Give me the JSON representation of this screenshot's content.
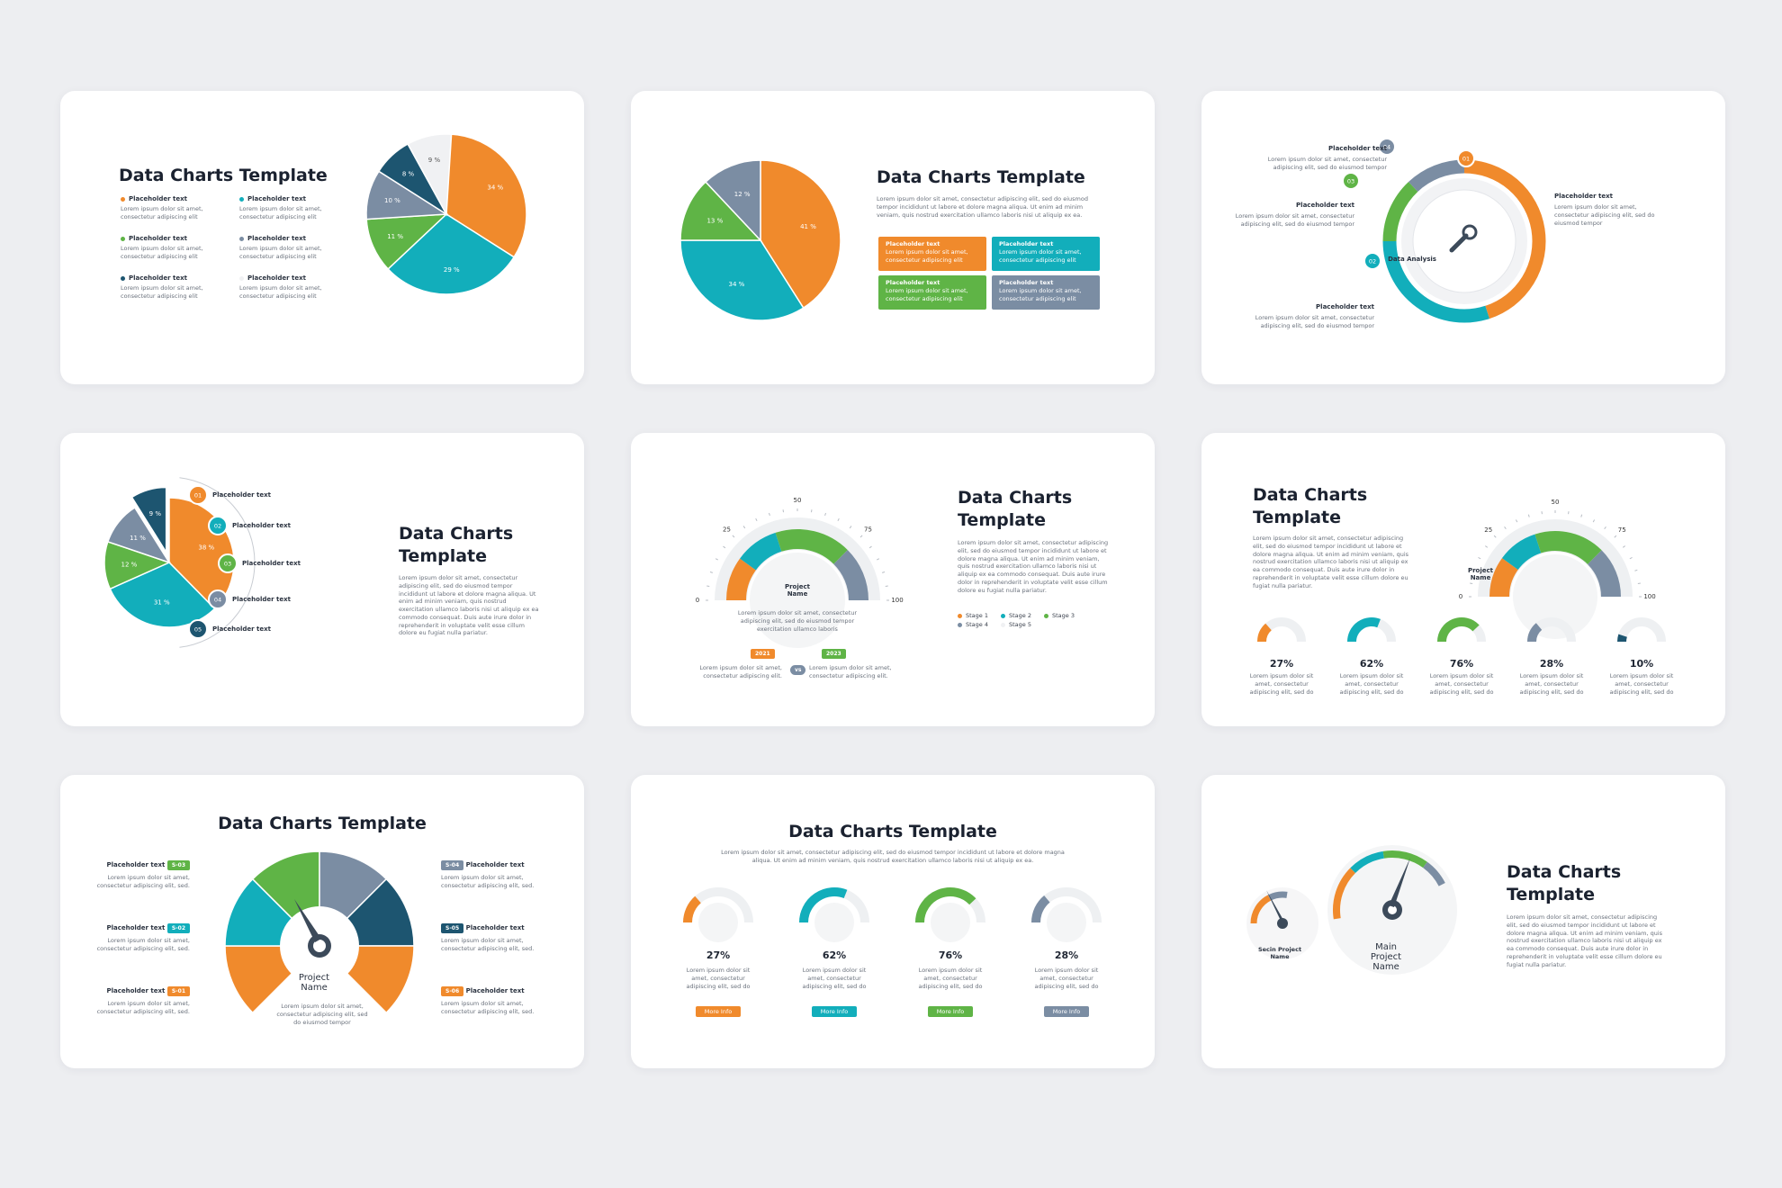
{
  "colors": {
    "orange": "#f08a2c",
    "teal": "#12aebb",
    "green": "#5fb446",
    "slate": "#7b8da3",
    "navy": "#1d5570",
    "light": "#f0f1f3"
  },
  "lorem_short": "Lorem ipsum dolor sit amet, consectetur adipiscing elit",
  "lorem_short2": "Lorem ipsum dolor sit amet, consectetur adipiscing elit.",
  "lorem_tempor": "Lorem ipsum dolor sit amet, consectetur adipiscing elit, sed do eiusmod tempor",
  "lorem_do": "Lorem ipsum dolor sit amet, consectetur adipiscing elit, sed do",
  "lorem_sed": "Lorem ipsum dolor sit amet, consectetur adipiscing elit, sed.",
  "lorem_block": "Lorem ipsum dolor sit amet, consectetur adipiscing elit, sed do eiusmod tempor incididunt ut labore et dolore magna aliqua. Ut enim ad minim veniam, quis nostrud exercitation ullamco laboris nisi ut aliquip ex ea commodo consequat. Duis aute irure dolor in reprehenderit in voluptate velit esse cillum dolore eu fugiat nulla pariatur.",
  "lorem_mid": "Lorem ipsum dolor sit amet, consectetur adipiscing elit, sed do eiusmod tempor incididunt ut labore et dolore magna aliqua. Ut enim ad minim veniam, quis nostrud exercitation ullamco laboris nisi ut aliquip ex ea.",
  "lorem_center": "Lorem ipsum dolor sit amet, consectetur adipiscing elit, sed do eiusmod tempor exercitation ullamco laboris",
  "placeholder": "Placeholder text",
  "chart_data": [
    {
      "type": "pie",
      "title": "Data Charts Template",
      "values": [
        34,
        29,
        11,
        10,
        8,
        9
      ],
      "labels": [
        "34 %",
        "29 %",
        "11 %",
        "10 %",
        "8 %",
        "9 %"
      ],
      "legend": [
        "Placeholder text",
        "Placeholder text",
        "Placeholder text",
        "Placeholder text",
        "Placeholder text",
        "Placeholder text"
      ]
    },
    {
      "type": "pie",
      "title": "Data Charts Template",
      "values": [
        41,
        34,
        13,
        12
      ],
      "labels": [
        "41 %",
        "34 %",
        "13 %",
        "12 %"
      ],
      "boxes": [
        "Placeholder text",
        "Placeholder text",
        "Placeholder text",
        "Placeholder text"
      ]
    },
    {
      "type": "pie",
      "title": "",
      "center_label": "Data Analysis",
      "values": [
        45,
        30,
        13,
        12
      ],
      "markers": [
        "01",
        "02",
        "03",
        "04"
      ],
      "labels": [
        "Placeholder text",
        "Placeholder text",
        "Placeholder text",
        "Placeholder text"
      ]
    },
    {
      "type": "pie",
      "title": "Data Charts Template",
      "values": [
        38,
        31,
        12,
        11,
        9
      ],
      "labels": [
        "38 %",
        "31 %",
        "12 %",
        "11 %",
        "9 %"
      ],
      "markers": [
        "01",
        "02",
        "03",
        "04",
        "05"
      ]
    },
    {
      "type": "gauge",
      "title": "Data Charts Template",
      "center_label": "Project Name",
      "ticks": [
        "0",
        "25",
        "50",
        "75",
        "100"
      ],
      "segments": [
        20,
        20,
        35,
        25
      ],
      "legend": [
        "Stage 1",
        "Stage 2",
        "Stage 3",
        "Stage 4",
        "Stage 5"
      ],
      "years": [
        "2021",
        "2023"
      ],
      "vs": "vs"
    },
    {
      "type": "gauge",
      "title": "Data Charts Template",
      "center_label": "Project Name",
      "ticks": [
        "0",
        "25",
        "50",
        "75",
        "100"
      ],
      "segments": [
        20,
        20,
        35,
        25
      ],
      "mini": [
        27,
        62,
        76,
        28,
        10
      ],
      "mini_labels": [
        "27%",
        "62%",
        "76%",
        "28%",
        "10%"
      ]
    },
    {
      "type": "gauge",
      "title": "Data Charts Template",
      "center_label": "Project Name",
      "left": [
        {
          "tag": "S-03",
          "label": "Placeholder text"
        },
        {
          "tag": "S-02",
          "label": "Placeholder text"
        },
        {
          "tag": "S-01",
          "label": "Placeholder text"
        }
      ],
      "right": [
        {
          "tag": "S-04",
          "label": "Placeholder text"
        },
        {
          "tag": "S-05",
          "label": "Placeholder text"
        },
        {
          "tag": "S-06",
          "label": "Placeholder text"
        }
      ]
    },
    {
      "type": "gauge",
      "title": "Data Charts Template",
      "values": [
        27,
        62,
        76,
        28
      ],
      "labels": [
        "27%",
        "62%",
        "76%",
        "28%"
      ],
      "button": "More Info"
    },
    {
      "type": "gauge",
      "title": "Data Charts Template",
      "main": "Main Project Name",
      "second": "Secin Project Name"
    }
  ]
}
